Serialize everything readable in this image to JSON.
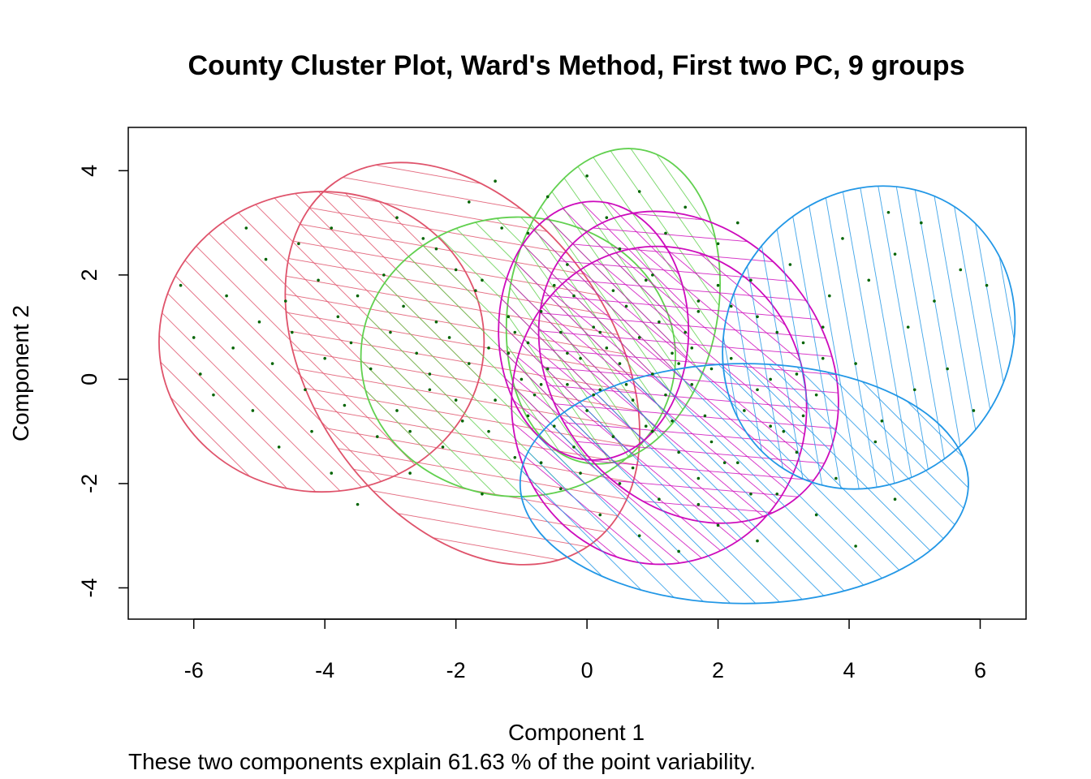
{
  "chart_data": {
    "type": "scatter",
    "title": "County Cluster Plot, Ward's Method, First two PC, 9 groups",
    "xlabel": "Component 1",
    "ylabel": "Component 2",
    "subtitle": "These two components explain 61.63 % of the point variability.",
    "xlim": [
      -7.0,
      6.7
    ],
    "ylim": [
      -4.6,
      4.83
    ],
    "x_ticks": [
      -6,
      -4,
      -2,
      0,
      2,
      4,
      6
    ],
    "y_ticks": [
      -4,
      -2,
      0,
      2,
      4
    ],
    "point_color": "#006400",
    "clusters": [
      {
        "cx": -4.05,
        "cy": 0.72,
        "rx": 2.48,
        "ry": 2.88,
        "angle": 0,
        "color": "#DF536B"
      },
      {
        "cx": -1.9,
        "cy": 0.3,
        "rx": 2.3,
        "ry": 4.25,
        "angle": -35,
        "color": "#DF536B"
      },
      {
        "cx": -1.05,
        "cy": 0.43,
        "rx": 2.4,
        "ry": 2.68,
        "angle": 0,
        "color": "#61D04F"
      },
      {
        "cx": 0.4,
        "cy": 1.4,
        "rx": 1.6,
        "ry": 3.05,
        "angle": 10,
        "color": "#61D04F"
      },
      {
        "cx": 0.1,
        "cy": 0.93,
        "rx": 1.45,
        "ry": 2.48,
        "angle": 0,
        "color": "#CD0BBC"
      },
      {
        "cx": 1.55,
        "cy": 0.23,
        "rx": 2.05,
        "ry": 3.25,
        "angle": -40,
        "color": "#CD0BBC"
      },
      {
        "cx": 1.1,
        "cy": -0.5,
        "rx": 2.25,
        "ry": 3.05,
        "angle": -5,
        "color": "#CD0BBC"
      },
      {
        "cx": 2.4,
        "cy": -2.0,
        "rx": 3.42,
        "ry": 2.3,
        "angle": 0,
        "color": "#2297E6"
      },
      {
        "cx": 4.3,
        "cy": 0.8,
        "rx": 2.15,
        "ry": 3.0,
        "angle": 35,
        "color": "#2297E6"
      }
    ],
    "points": [
      [
        -6.2,
        1.8
      ],
      [
        -6.0,
        0.8
      ],
      [
        -5.9,
        0.1
      ],
      [
        -5.7,
        -0.3
      ],
      [
        -5.5,
        1.6
      ],
      [
        -5.4,
        0.6
      ],
      [
        -5.2,
        2.9
      ],
      [
        -5.1,
        -0.6
      ],
      [
        -5.0,
        1.1
      ],
      [
        -4.9,
        2.3
      ],
      [
        -4.8,
        0.3
      ],
      [
        -4.7,
        -1.3
      ],
      [
        -4.6,
        1.5
      ],
      [
        -4.5,
        0.9
      ],
      [
        -4.4,
        2.6
      ],
      [
        -4.3,
        -0.2
      ],
      [
        -4.2,
        -1.0
      ],
      [
        -4.1,
        1.9
      ],
      [
        -4.0,
        0.4
      ],
      [
        -3.9,
        -1.8
      ],
      [
        -3.9,
        2.9
      ],
      [
        -3.8,
        1.2
      ],
      [
        -3.7,
        -0.5
      ],
      [
        -3.6,
        0.7
      ],
      [
        -3.5,
        -2.4
      ],
      [
        -3.5,
        1.6
      ],
      [
        -3.3,
        0.2
      ],
      [
        -3.2,
        -1.1
      ],
      [
        -3.1,
        2.0
      ],
      [
        -3.0,
        0.9
      ],
      [
        -2.9,
        -0.6
      ],
      [
        -2.8,
        1.4
      ],
      [
        -2.7,
        -1.8
      ],
      [
        -2.6,
        0.5
      ],
      [
        -2.5,
        2.7
      ],
      [
        -2.4,
        -0.2
      ],
      [
        -2.3,
        1.1
      ],
      [
        -2.2,
        -1.3
      ],
      [
        -2.1,
        0.8
      ],
      [
        -2.0,
        2.1
      ],
      [
        -1.9,
        -0.8
      ],
      [
        -1.8,
        0.3
      ],
      [
        -1.7,
        1.7
      ],
      [
        -1.6,
        -2.2
      ],
      [
        -1.5,
        0.6
      ],
      [
        -1.4,
        -0.4
      ],
      [
        -1.3,
        2.9
      ],
      [
        -1.2,
        1.2
      ],
      [
        -1.1,
        -1.5
      ],
      [
        -1.0,
        0.0
      ],
      [
        -2.9,
        3.1
      ],
      [
        -2.3,
        2.5
      ],
      [
        -1.8,
        3.4
      ],
      [
        -1.4,
        3.8
      ],
      [
        -0.9,
        2.8
      ],
      [
        -0.6,
        3.5
      ],
      [
        -0.3,
        2.2
      ],
      [
        0.0,
        3.9
      ],
      [
        0.3,
        3.1
      ],
      [
        0.5,
        2.5
      ],
      [
        0.8,
        3.6
      ],
      [
        1.0,
        2.0
      ],
      [
        1.2,
        2.8
      ],
      [
        1.5,
        3.3
      ],
      [
        1.7,
        1.5
      ],
      [
        2.0,
        2.6
      ],
      [
        2.3,
        3.0
      ],
      [
        2.5,
        1.9
      ],
      [
        -0.9,
        0.7
      ],
      [
        -0.8,
        -0.3
      ],
      [
        -0.7,
        1.3
      ],
      [
        -0.6,
        0.2
      ],
      [
        -0.5,
        -0.9
      ],
      [
        -0.4,
        0.9
      ],
      [
        -0.3,
        -0.1
      ],
      [
        -0.2,
        1.6
      ],
      [
        -0.1,
        0.4
      ],
      [
        0.0,
        -0.6
      ],
      [
        0.1,
        1.0
      ],
      [
        0.2,
        -0.2
      ],
      [
        0.3,
        0.6
      ],
      [
        0.4,
        -1.1
      ],
      [
        0.5,
        0.3
      ],
      [
        0.6,
        1.4
      ],
      [
        0.7,
        -0.4
      ],
      [
        0.8,
        0.8
      ],
      [
        0.9,
        -0.9
      ],
      [
        1.0,
        0.1
      ],
      [
        1.1,
        1.1
      ],
      [
        1.2,
        -0.3
      ],
      [
        1.3,
        0.5
      ],
      [
        1.4,
        -1.4
      ],
      [
        1.5,
        0.9
      ],
      [
        1.6,
        -0.1
      ],
      [
        1.7,
        1.3
      ],
      [
        1.8,
        -0.7
      ],
      [
        1.9,
        0.2
      ],
      [
        2.0,
        1.8
      ],
      [
        -0.7,
        -1.6
      ],
      [
        -0.4,
        -2.1
      ],
      [
        -0.1,
        -1.8
      ],
      [
        0.2,
        -2.6
      ],
      [
        0.5,
        -2.0
      ],
      [
        0.8,
        -3.0
      ],
      [
        1.1,
        -2.3
      ],
      [
        1.4,
        -3.3
      ],
      [
        1.7,
        -1.9
      ],
      [
        2.0,
        -2.8
      ],
      [
        2.3,
        -1.6
      ],
      [
        2.6,
        -3.1
      ],
      [
        2.9,
        -2.2
      ],
      [
        3.2,
        -1.4
      ],
      [
        3.5,
        -2.6
      ],
      [
        3.8,
        -1.9
      ],
      [
        4.1,
        -3.2
      ],
      [
        4.4,
        -1.2
      ],
      [
        4.7,
        -2.3
      ],
      [
        2.2,
        0.4
      ],
      [
        2.4,
        -0.6
      ],
      [
        2.6,
        1.2
      ],
      [
        2.8,
        0.0
      ],
      [
        3.0,
        -1.0
      ],
      [
        3.1,
        2.2
      ],
      [
        3.3,
        0.7
      ],
      [
        3.5,
        -0.3
      ],
      [
        3.7,
        1.6
      ],
      [
        3.9,
        2.7
      ],
      [
        4.1,
        0.3
      ],
      [
        4.3,
        1.9
      ],
      [
        4.5,
        -0.8
      ],
      [
        4.7,
        2.4
      ],
      [
        4.9,
        1.0
      ],
      [
        5.1,
        3.0
      ],
      [
        5.3,
        1.5
      ],
      [
        5.5,
        0.2
      ],
      [
        5.7,
        2.1
      ],
      [
        5.9,
        -0.6
      ],
      [
        6.1,
        1.8
      ],
      [
        5.0,
        -0.2
      ],
      [
        4.6,
        3.2
      ],
      [
        -1.6,
        1.9
      ],
      [
        -1.2,
        0.5
      ],
      [
        -0.9,
        -0.7
      ],
      [
        -0.5,
        1.8
      ],
      [
        -0.2,
        -1.3
      ],
      [
        0.2,
        0.9
      ],
      [
        0.6,
        -0.1
      ],
      [
        0.9,
        1.9
      ],
      [
        1.3,
        -0.8
      ],
      [
        1.6,
        0.6
      ],
      [
        1.9,
        -1.2
      ],
      [
        2.2,
        1.4
      ],
      [
        2.6,
        -0.2
      ],
      [
        2.9,
        0.9
      ],
      [
        3.3,
        -0.7
      ],
      [
        3.6,
        0.4
      ],
      [
        -2.7,
        -1.0
      ],
      [
        -2.4,
        0.1
      ],
      [
        -2.0,
        -0.4
      ],
      [
        -1.5,
        -1.0
      ],
      [
        -1.1,
        0.9
      ],
      [
        -0.7,
        -0.1
      ],
      [
        -0.3,
        0.5
      ],
      [
        0.1,
        -0.3
      ],
      [
        0.4,
        1.7
      ],
      [
        0.7,
        -1.7
      ],
      [
        1.0,
        -1.0
      ],
      [
        1.4,
        0.3
      ],
      [
        1.7,
        -2.4
      ],
      [
        2.1,
        -1.6
      ],
      [
        2.5,
        -2.2
      ],
      [
        2.8,
        -0.9
      ],
      [
        3.2,
        0.1
      ],
      [
        3.6,
        1.0
      ]
    ]
  }
}
